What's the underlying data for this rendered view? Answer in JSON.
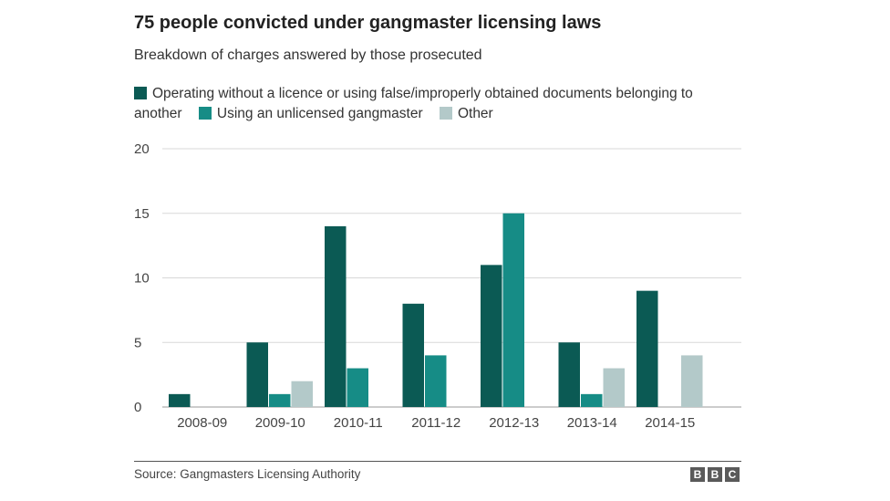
{
  "chart_data": {
    "type": "bar",
    "title": "75 people convicted under gangmaster licensing laws",
    "subtitle": "Breakdown of charges answered by those prosecuted",
    "categories": [
      "2008-09",
      "2009-10",
      "2010-11",
      "2011-12",
      "2012-13",
      "2013-14",
      "2014-15"
    ],
    "series": [
      {
        "name": "Operating without a licence or using false/improperly obtained documents belonging to another",
        "color": "#0b5a54",
        "values": [
          1,
          5,
          14,
          8,
          11,
          5,
          9
        ]
      },
      {
        "name": "Using an unlicensed gangmaster",
        "color": "#168c86",
        "values": [
          0,
          1,
          3,
          4,
          15,
          1,
          0
        ]
      },
      {
        "name": "Other",
        "color": "#b3c9c9",
        "values": [
          0,
          2,
          0,
          0,
          0,
          3,
          4
        ]
      }
    ],
    "ylim": [
      0,
      20
    ],
    "yticks": [
      0,
      5,
      10,
      15,
      20
    ],
    "grid": true,
    "legend_position": "top",
    "xlabel": "",
    "ylabel": ""
  },
  "source": "Source: Gangmasters Licensing Authority",
  "logo": [
    "B",
    "B",
    "C"
  ]
}
